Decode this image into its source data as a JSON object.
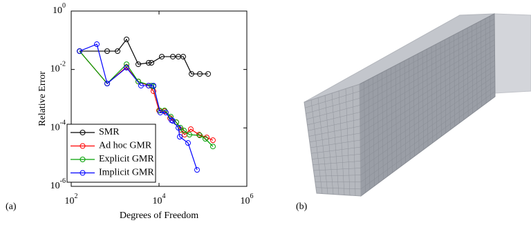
{
  "chart_data": {
    "type": "line",
    "log_x": true,
    "log_y": true,
    "legend": "lower left",
    "panel_label": "(a)",
    "xlabel": "Degrees of Freedom",
    "ylabel": "Relative Error",
    "xlim": [
      100,
      1000000
    ],
    "ylim": [
      1e-06,
      1
    ],
    "xticks": [
      {
        "value": 100,
        "label": "10",
        "exponent": "2"
      },
      {
        "value": 10000,
        "label": "10",
        "exponent": "4"
      },
      {
        "value": 1000000,
        "label": "10",
        "exponent": "6"
      }
    ],
    "yticks": [
      {
        "value": 1e-06,
        "label": "10",
        "exponent": "-6"
      },
      {
        "value": 0.0001,
        "label": "10",
        "exponent": "-4"
      },
      {
        "value": 0.01,
        "label": "10",
        "exponent": "-2"
      },
      {
        "value": 1,
        "label": "10",
        "exponent": "0"
      }
    ],
    "series": [
      {
        "name": "SMR",
        "color": "#000000",
        "x": [
          155,
          659,
          1137,
          1820,
          3370,
          5800,
          6710,
          11560,
          20650,
          27600,
          35560,
          54950,
          84900,
          131300
        ],
        "values": [
          0.0425,
          0.0425,
          0.0425,
          0.107,
          0.0151,
          0.0169,
          0.0169,
          0.0275,
          0.0275,
          0.0275,
          0.0275,
          0.00706,
          0.00706,
          0.00706
        ]
      },
      {
        "name": "Ad hoc GMR",
        "color": "#ff0000",
        "x": [
          155,
          659,
          1820,
          3370,
          5800,
          7480,
          10000,
          13370,
          17860,
          24770,
          31900,
          38260,
          52960,
          81850,
          122100,
          169000
        ],
        "values": [
          0.0425,
          0.0033,
          0.0122,
          0.00388,
          0.0028,
          0.00181,
          0.000394,
          0.000373,
          0.000217,
          0.000156,
          8.59e-05,
          5.86e-05,
          9.06e-05,
          5.86e-05,
          4.72e-05,
          3.79e-05
        ]
      },
      {
        "name": "Explicit GMR",
        "color": "#00a000",
        "x": [
          155,
          659,
          1820,
          3370,
          6710,
          7480,
          10380,
          13370,
          18530,
          24770,
          30770,
          36880,
          49300,
          84900,
          113500,
          169000
        ],
        "values": [
          0.0425,
          0.0033,
          0.0151,
          0.00388,
          0.0028,
          0.00265,
          0.000394,
          0.000394,
          0.000242,
          0.000156,
          0.000101,
          8.13e-05,
          5.86e-05,
          5.56e-05,
          4.23e-05,
          2.32e-05
        ]
      },
      {
        "name": "Implicit GMR",
        "color": "#0000ff",
        "x": [
          155,
          383,
          659,
          1820,
          3890,
          5800,
          7480,
          10700,
          14360,
          19200,
          20650,
          27600,
          29660,
          45840,
          73480
        ],
        "values": [
          0.0425,
          0.0733,
          0.0033,
          0.0115,
          0.0028,
          0.0028,
          0.0028,
          0.000335,
          0.000335,
          0.000184,
          0.000174,
          0.000101,
          4.98e-05,
          3.05e-05,
          3.66e-06
        ]
      }
    ]
  },
  "figure_b": {
    "panel_label": "(b)"
  }
}
